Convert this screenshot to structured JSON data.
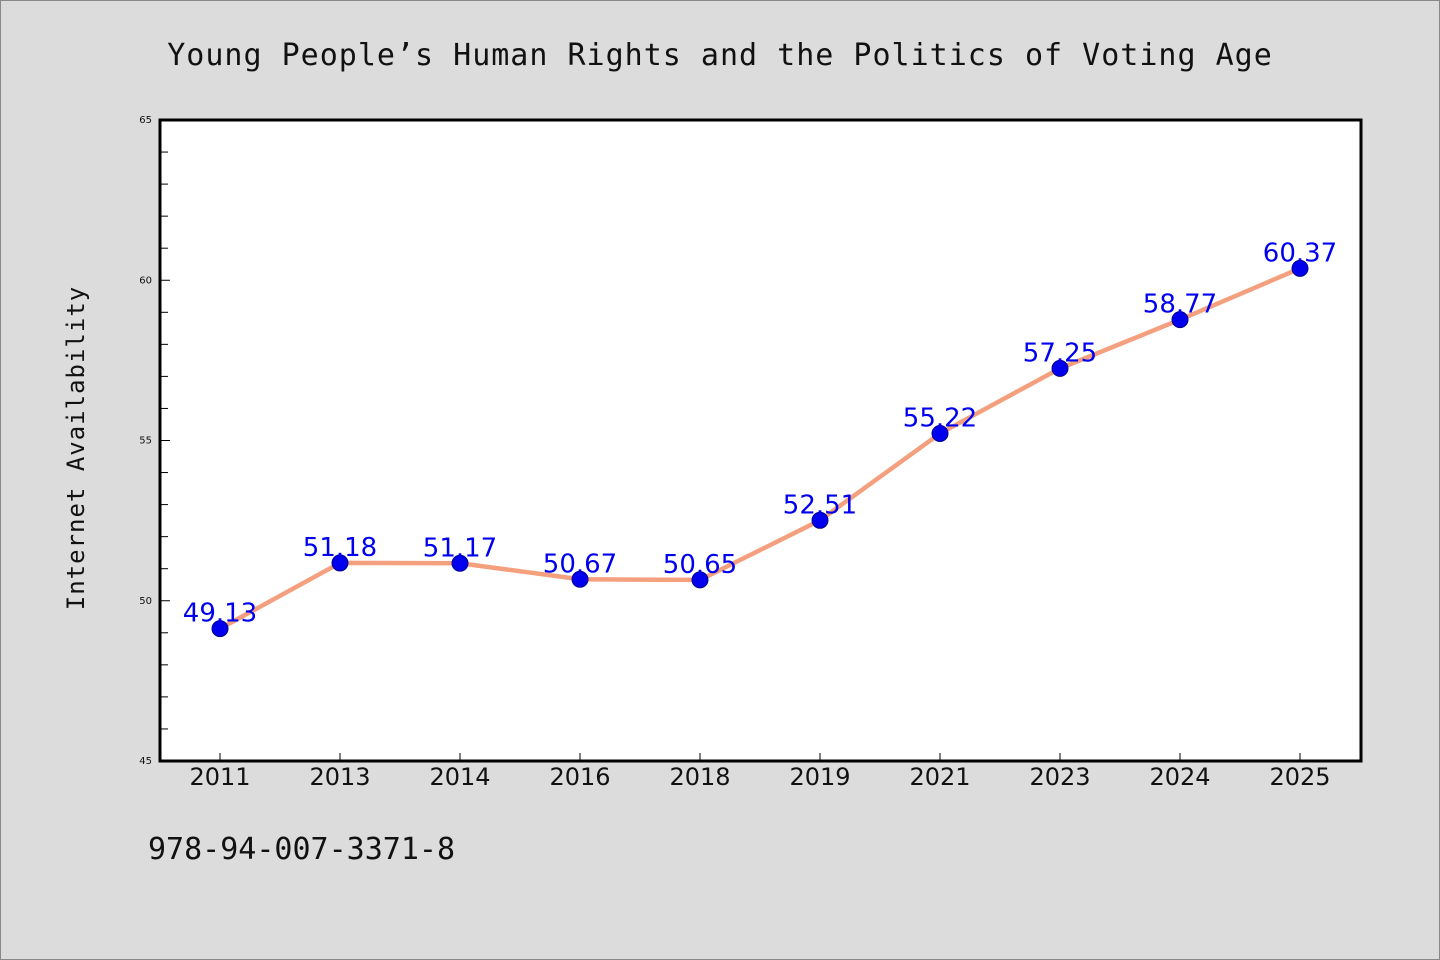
{
  "title": "Young People’s Human Rights and the Politics of Voting Age",
  "footer_text": "978-94-007-3371-8",
  "colors": {
    "background": "#dcdcdc",
    "plot_background": "#ffffff",
    "line": "#f4a07f",
    "marker": "#0000ee",
    "data_label": "#0000ee"
  },
  "chart_data": {
    "type": "line",
    "title": "Young People’s Human Rights and the Politics of Voting Age",
    "xlabel": "",
    "ylabel": "Internet Availability",
    "categories": [
      "2011",
      "2013",
      "2014",
      "2016",
      "2018",
      "2019",
      "2021",
      "2023",
      "2024",
      "2025"
    ],
    "series": [
      {
        "values": [
          49.13,
          51.18,
          51.17,
          50.67,
          50.65,
          52.51,
          55.22,
          57.25,
          58.77,
          60.37
        ],
        "labels": [
          "49.13",
          "51.18",
          "51.17",
          "50.67",
          "50.65",
          "52.51",
          "55.22",
          "57.25",
          "58.77",
          "60.37"
        ]
      }
    ],
    "ylim": [
      45,
      65
    ],
    "yticks": [
      45,
      50,
      55,
      60,
      65
    ],
    "grid": false,
    "legend": "none"
  }
}
